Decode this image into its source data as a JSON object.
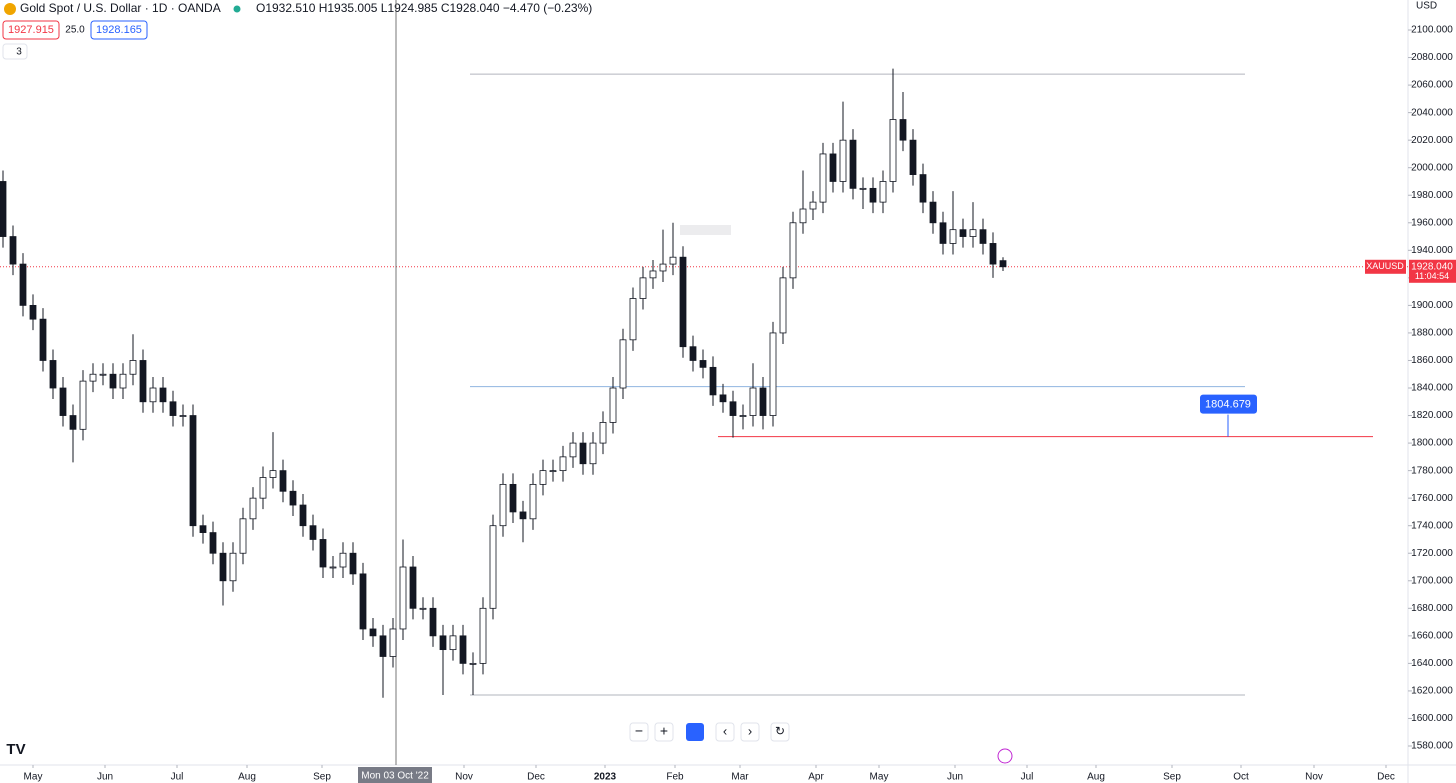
{
  "header": {
    "title": "Gold Spot / U.S. Dollar · 1D · OANDA",
    "ohlc": "O1932.510 H1935.005 L1924.985 C1928.040 −4.470 (−0.23%)",
    "bid": "1927.915",
    "spread": "25.0",
    "ask": "1928.165",
    "indicators": "3",
    "currency": "USD"
  },
  "chart_data": {
    "type": "candlestick",
    "symbol": "XAUUSD",
    "last_price_label": "1928.040",
    "countdown": "11:04:54",
    "crosshair_label": "Mon 03 Oct '22",
    "crosshair_x": 39.3,
    "xlim": [
      -0.3,
      140.5
    ],
    "ylim": [
      1566.2,
      2121.8
    ],
    "xticks": [
      {
        "value": 3.0,
        "label": "May"
      },
      {
        "value": 10.2,
        "label": "Jun"
      },
      {
        "value": 17.4,
        "label": "Jul"
      },
      {
        "value": 24.4,
        "label": "Aug"
      },
      {
        "value": 31.9,
        "label": "Sep"
      },
      {
        "value": 46.1,
        "label": "Nov"
      },
      {
        "value": 53.3,
        "label": "Dec"
      },
      {
        "value": 60.2,
        "label": "2023"
      },
      {
        "value": 67.2,
        "label": "Feb"
      },
      {
        "value": 73.7,
        "label": "Mar"
      },
      {
        "value": 81.3,
        "label": "Apr"
      },
      {
        "value": 87.6,
        "label": "May"
      },
      {
        "value": 95.2,
        "label": "Jun"
      },
      {
        "value": 102.4,
        "label": "Jul"
      },
      {
        "value": 109.3,
        "label": "Aug"
      },
      {
        "value": 116.9,
        "label": "Sep"
      },
      {
        "value": 123.8,
        "label": "Oct"
      },
      {
        "value": 131.1,
        "label": "Nov"
      },
      {
        "value": 138.3,
        "label": "Dec"
      }
    ],
    "yticks": [
      {
        "value": 1580,
        "label": "1580.000"
      },
      {
        "value": 1600,
        "label": "1600.000"
      },
      {
        "value": 1620,
        "label": "1620.000"
      },
      {
        "value": 1640,
        "label": "1640.000"
      },
      {
        "value": 1660,
        "label": "1660.000"
      },
      {
        "value": 1680,
        "label": "1680.000"
      },
      {
        "value": 1700,
        "label": "1700.000"
      },
      {
        "value": 1720,
        "label": "1720.000"
      },
      {
        "value": 1740,
        "label": "1740.000"
      },
      {
        "value": 1760,
        "label": "1760.000"
      },
      {
        "value": 1780,
        "label": "1780.000"
      },
      {
        "value": 1800,
        "label": "1800.000"
      },
      {
        "value": 1820,
        "label": "1820.000"
      },
      {
        "value": 1840,
        "label": "1840.000"
      },
      {
        "value": 1860,
        "label": "1860.000"
      },
      {
        "value": 1880,
        "label": "1880.000"
      },
      {
        "value": 1900,
        "label": "1900.000"
      },
      {
        "value": 1920,
        "label": "1920.000"
      },
      {
        "value": 1940,
        "label": "1940.000"
      },
      {
        "value": 1960,
        "label": "1960.000"
      },
      {
        "value": 1980,
        "label": "1980.000"
      },
      {
        "value": 2000,
        "label": "2000.000"
      },
      {
        "value": 2020,
        "label": "2020.000"
      },
      {
        "value": 2040,
        "label": "2040.000"
      },
      {
        "value": 2060,
        "label": "2060.000"
      },
      {
        "value": 2080,
        "label": "2080.000"
      },
      {
        "value": 2100,
        "label": "2100.000"
      }
    ],
    "levels": [
      {
        "value": 2068,
        "color": "#b2b5be"
      },
      {
        "value": 1617,
        "color": "#b2b5be"
      },
      {
        "value": 1841,
        "color": "#90b4e0"
      },
      {
        "value": 1804.679,
        "color": "#f23645",
        "label": "1804.679"
      }
    ],
    "last_price": 1928.04,
    "open": [
      1990,
      1950,
      1930,
      1900,
      1890,
      1860,
      1840,
      1820,
      1810,
      1845,
      1850,
      1850,
      1840,
      1850,
      1860,
      1830,
      1840,
      1830,
      1820,
      1820,
      1740,
      1735,
      1720,
      1700,
      1720,
      1745,
      1760,
      1775,
      1780,
      1765,
      1755,
      1740,
      1730,
      1710,
      1710,
      1720,
      1705,
      1665,
      1660,
      1645,
      1665,
      1710,
      1680,
      1680,
      1660,
      1650,
      1660,
      1640,
      1640,
      1680,
      1740,
      1770,
      1750,
      1745,
      1770,
      1780,
      1780,
      1790,
      1800,
      1785,
      1800,
      1815,
      1840,
      1875,
      1905,
      1920,
      1925,
      1930,
      1935,
      1870,
      1860,
      1855,
      1835,
      1830,
      1820,
      1820,
      1840,
      1820,
      1880,
      1920,
      1960,
      1970,
      1975,
      2010,
      1990,
      2020,
      1985,
      1985,
      1975,
      1990,
      2035,
      2020,
      1995,
      1975,
      1960,
      1945,
      1955,
      1950,
      1955,
      1945,
      1932.51
    ],
    "high": [
      1998,
      1958,
      1938,
      1908,
      1898,
      1868,
      1848,
      1828,
      1853,
      1858,
      1858,
      1858,
      1858,
      1879,
      1868,
      1848,
      1848,
      1838,
      1828,
      1828,
      1748,
      1743,
      1728,
      1728,
      1753,
      1768,
      1783,
      1808,
      1788,
      1773,
      1763,
      1748,
      1738,
      1718,
      1728,
      1728,
      1713,
      1673,
      1668,
      1673,
      1730,
      1718,
      1688,
      1688,
      1668,
      1668,
      1668,
      1648,
      1688,
      1748,
      1778,
      1778,
      1758,
      1778,
      1788,
      1788,
      1798,
      1808,
      1808,
      1808,
      1823,
      1848,
      1883,
      1913,
      1928,
      1933,
      1955,
      1960,
      1943,
      1878,
      1868,
      1863,
      1843,
      1838,
      1828,
      1858,
      1848,
      1888,
      1928,
      1968,
      1998,
      1983,
      2018,
      2018,
      2048,
      2028,
      1993,
      1993,
      1998,
      2072,
      2055,
      2028,
      2003,
      1983,
      1968,
      1983,
      1963,
      1975,
      1963,
      1953,
      1935.005
    ],
    "low": [
      1942,
      1922,
      1892,
      1882,
      1852,
      1832,
      1812,
      1786,
      1802,
      1837,
      1842,
      1832,
      1832,
      1842,
      1822,
      1822,
      1822,
      1812,
      1812,
      1732,
      1727,
      1712,
      1682,
      1692,
      1712,
      1737,
      1752,
      1767,
      1757,
      1747,
      1732,
      1722,
      1702,
      1702,
      1702,
      1697,
      1657,
      1652,
      1615,
      1637,
      1657,
      1672,
      1672,
      1652,
      1617,
      1642,
      1632,
      1617,
      1632,
      1672,
      1732,
      1742,
      1728,
      1737,
      1762,
      1772,
      1772,
      1782,
      1777,
      1777,
      1792,
      1807,
      1832,
      1867,
      1897,
      1912,
      1917,
      1922,
      1862,
      1852,
      1847,
      1827,
      1822,
      1804,
      1810,
      1812,
      1810,
      1812,
      1872,
      1912,
      1952,
      1962,
      1967,
      1982,
      1982,
      1977,
      1970,
      1967,
      1967,
      1982,
      2012,
      1987,
      1967,
      1952,
      1937,
      1937,
      1942,
      1942,
      1937,
      1920,
      1924.985
    ],
    "close": [
      1950,
      1930,
      1900,
      1890,
      1860,
      1840,
      1820,
      1810,
      1845,
      1850,
      1850,
      1840,
      1850,
      1860,
      1830,
      1840,
      1830,
      1820,
      1820,
      1740,
      1735,
      1720,
      1700,
      1720,
      1745,
      1760,
      1775,
      1780,
      1765,
      1755,
      1740,
      1730,
      1710,
      1710,
      1720,
      1705,
      1665,
      1660,
      1645,
      1665,
      1710,
      1680,
      1680,
      1660,
      1650,
      1660,
      1640,
      1640,
      1680,
      1740,
      1770,
      1750,
      1745,
      1770,
      1780,
      1780,
      1790,
      1800,
      1785,
      1800,
      1815,
      1840,
      1875,
      1905,
      1920,
      1925,
      1930,
      1935,
      1870,
      1860,
      1855,
      1835,
      1830,
      1820,
      1820,
      1840,
      1820,
      1880,
      1920,
      1960,
      1970,
      1975,
      2010,
      1990,
      2020,
      1985,
      1985,
      1975,
      1990,
      2035,
      2020,
      1995,
      1975,
      1960,
      1945,
      1955,
      1950,
      1955,
      1945,
      1930,
      1928.04
    ]
  }
}
